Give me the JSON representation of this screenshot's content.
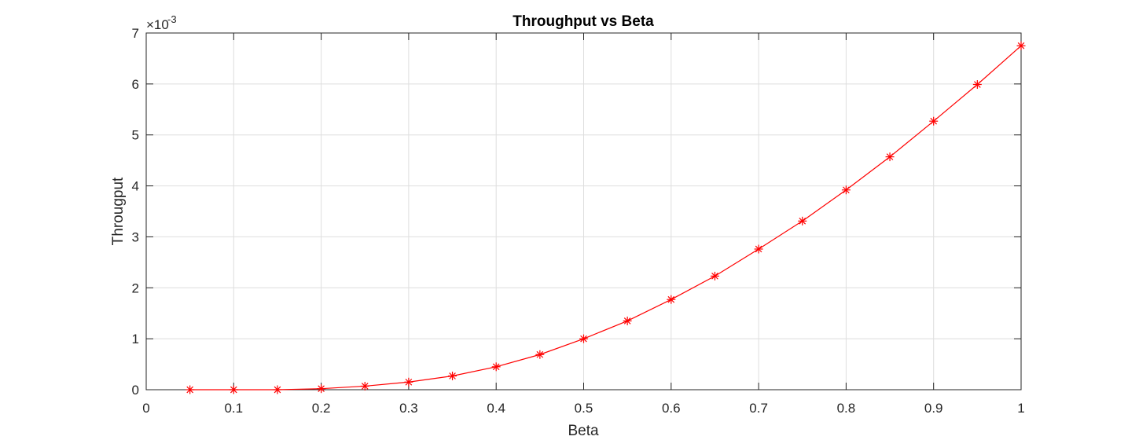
{
  "chart_data": {
    "type": "line",
    "title": "Throughput vs Beta",
    "xlabel": "Beta",
    "ylabel": "Througput",
    "y_exponent_label": "×10",
    "y_exponent_power": "-3",
    "xlim": [
      0,
      1
    ],
    "ylim": [
      0,
      7
    ],
    "x_ticks": [
      "0",
      "0.1",
      "0.2",
      "0.3",
      "0.4",
      "0.5",
      "0.6",
      "0.7",
      "0.8",
      "0.9",
      "1"
    ],
    "y_ticks": [
      "0",
      "1",
      "2",
      "3",
      "4",
      "5",
      "6",
      "7"
    ],
    "grid": true,
    "y_scale_factor": 0.001,
    "series": [
      {
        "color": "#ff0000",
        "marker": "asterisk",
        "x": [
          0.05,
          0.1,
          0.15,
          0.2,
          0.25,
          0.3,
          0.35,
          0.4,
          0.45,
          0.5,
          0.55,
          0.6,
          0.65,
          0.7,
          0.75,
          0.8,
          0.85,
          0.9,
          0.95,
          1.0
        ],
        "y": [
          0.0,
          0.0,
          0.0,
          0.02,
          0.07,
          0.15,
          0.27,
          0.45,
          0.69,
          1.0,
          1.35,
          1.77,
          2.23,
          2.76,
          3.31,
          3.92,
          4.57,
          5.27,
          5.99,
          6.75
        ]
      }
    ]
  }
}
